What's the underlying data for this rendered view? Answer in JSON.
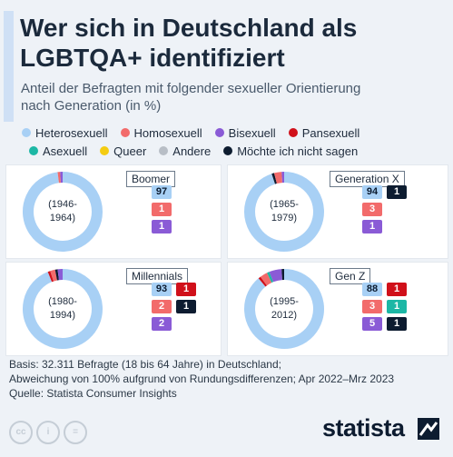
{
  "title_line1": "Wer sich in Deutschland als",
  "title_line2": "LGBTQA+ identifiziert",
  "subtitle_line1": "Anteil der Befragten mit folgender sexueller Orientierung",
  "subtitle_line2": "nach Generation (in %)",
  "legend": [
    {
      "label": "Heterosexuell",
      "color": "#a8d0f5"
    },
    {
      "label": "Homosexuell",
      "color": "#f26b6b"
    },
    {
      "label": "Bisexuell",
      "color": "#8a5bd6"
    },
    {
      "label": "Pansexuell",
      "color": "#d0101a"
    },
    {
      "label": "Asexuell",
      "color": "#1cb7a5"
    },
    {
      "label": "Queer",
      "color": "#f4cc12"
    },
    {
      "label": "Andere",
      "color": "#b8bec6"
    },
    {
      "label": "Möchte ich nicht sagen",
      "color": "#0d1c30"
    }
  ],
  "chart_data": [
    {
      "type": "pie",
      "name": "Boomer",
      "years": [
        "(1946-",
        "1964)"
      ],
      "categories": [
        "Heterosexuell",
        "Homosexuell",
        "Bisexuell"
      ],
      "values": [
        97,
        1,
        1
      ]
    },
    {
      "type": "pie",
      "name": "Generation X",
      "years": [
        "(1965-",
        "1979)"
      ],
      "categories": [
        "Heterosexuell",
        "Möchte ich nicht sagen",
        "Homosexuell",
        "Bisexuell"
      ],
      "values": [
        94,
        1,
        3,
        1
      ]
    },
    {
      "type": "pie",
      "name": "Millennials",
      "years": [
        "(1980-",
        "1994)"
      ],
      "categories": [
        "Heterosexuell",
        "Pansexuell",
        "Homosexuell",
        "Möchte ich nicht sagen",
        "Bisexuell"
      ],
      "values": [
        93,
        1,
        2,
        1,
        2
      ]
    },
    {
      "type": "pie",
      "name": "Gen Z",
      "years": [
        "(1995-",
        "2012)"
      ],
      "categories": [
        "Heterosexuell",
        "Pansexuell",
        "Homosexuell",
        "Asexuell",
        "Bisexuell",
        "Möchte ich nicht sagen"
      ],
      "values": [
        88,
        1,
        3,
        1,
        5,
        1
      ]
    }
  ],
  "footer_line1": "Basis: 32.311 Befragte (18 bis 64 Jahre) in Deutschland;",
  "footer_line2": "Abweichung von 100% aufgrund von Rundungsdifferenzen; Apr 2022–Mrz 2023",
  "footer_line3": "Quelle: Statista Consumer Insights",
  "brand": "statista"
}
